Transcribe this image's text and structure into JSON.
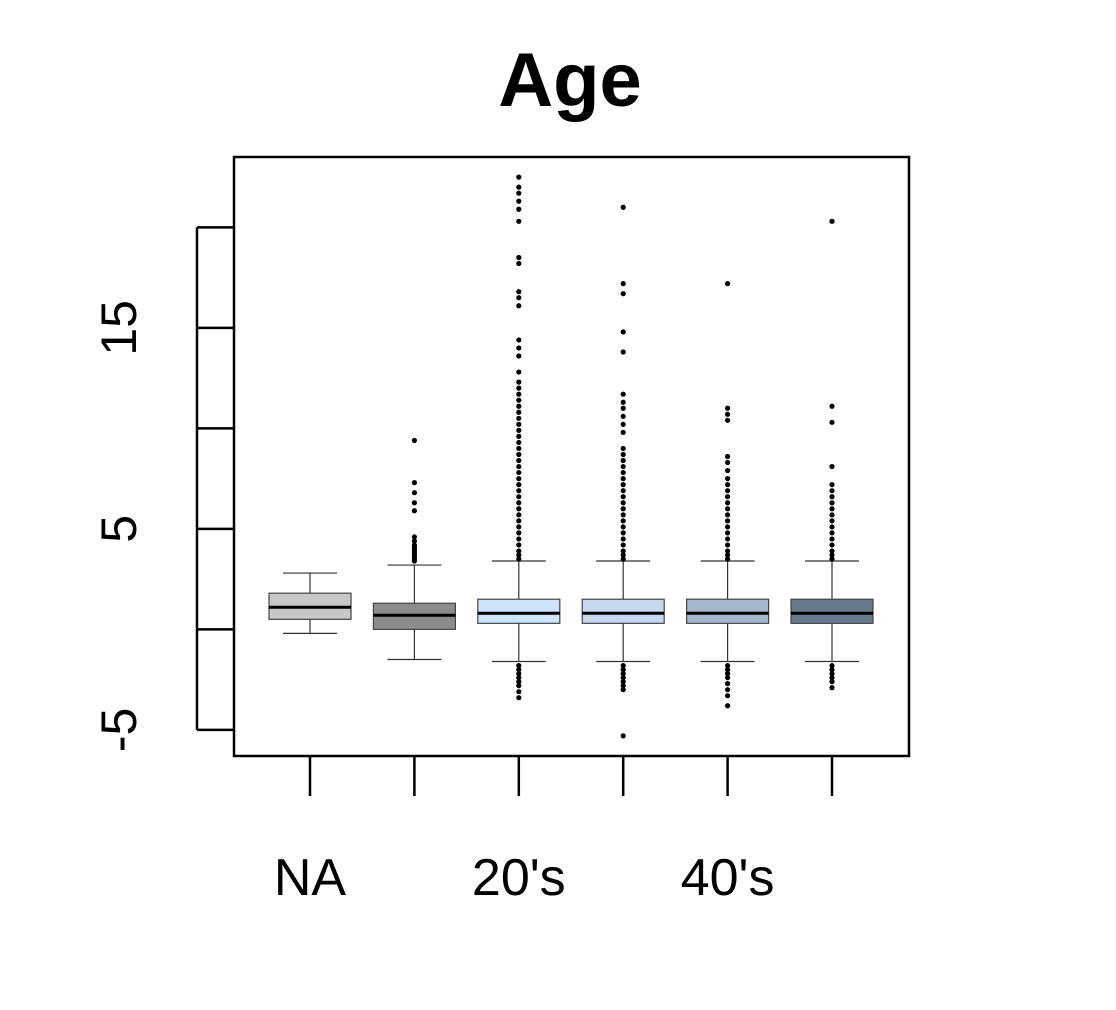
{
  "chart_data": {
    "type": "boxplot",
    "title": "Age",
    "xlabel": "",
    "ylabel": "",
    "ylim": [
      -6.3,
      23.5
    ],
    "y_ticks": [
      -5,
      0,
      5,
      10,
      15,
      20
    ],
    "y_tick_labels": [
      "-5",
      "",
      "5",
      "",
      "15",
      ""
    ],
    "x_tick_labels": [
      "NA",
      "",
      "20's",
      "",
      "40's",
      ""
    ],
    "grid": false,
    "legend": "none",
    "series": [
      {
        "color": "#c8c8c8",
        "q1": 0.5,
        "median": 1.1,
        "q3": 1.8,
        "whisker_low": -0.2,
        "whisker_high": 2.8,
        "outliers": []
      },
      {
        "color": "#8c8c8c",
        "q1": 0.0,
        "median": 0.7,
        "q3": 1.3,
        "whisker_low": -1.5,
        "whisker_high": 3.2,
        "outliers": [
          3.4,
          3.5,
          3.6,
          3.7,
          3.8,
          3.9,
          4.0,
          4.1,
          4.2,
          4.4,
          4.6,
          5.9,
          6.3,
          6.8,
          7.3,
          9.4
        ]
      },
      {
        "color": "#cfe3fb",
        "q1": 0.3,
        "median": 0.8,
        "q3": 1.5,
        "whisker_low": -1.6,
        "whisker_high": 3.4,
        "outliers": [
          3.5,
          3.7,
          3.9,
          4.2,
          4.5,
          4.8,
          5.1,
          5.4,
          5.7,
          6.0,
          6.3,
          6.6,
          6.9,
          7.2,
          7.5,
          7.8,
          8.1,
          8.4,
          8.7,
          9.0,
          9.3,
          9.6,
          9.9,
          10.2,
          10.5,
          10.8,
          11.1,
          11.4,
          11.7,
          12.0,
          12.3,
          12.8,
          13.6,
          14.0,
          14.4,
          16.1,
          16.5,
          16.8,
          18.2,
          18.5,
          20.3,
          20.9,
          21.3,
          21.7,
          22.0,
          22.5,
          -1.8,
          -2.0,
          -2.2,
          -2.4,
          -2.6,
          -2.8,
          -3.1,
          -3.4
        ]
      },
      {
        "color": "#c6d8ef",
        "q1": 0.3,
        "median": 0.8,
        "q3": 1.5,
        "whisker_low": -1.6,
        "whisker_high": 3.4,
        "outliers": [
          3.5,
          3.7,
          3.9,
          4.2,
          4.5,
          4.8,
          5.1,
          5.4,
          5.7,
          6.0,
          6.3,
          6.6,
          6.9,
          7.2,
          7.5,
          7.8,
          8.1,
          8.4,
          8.7,
          9.0,
          9.8,
          10.2,
          10.6,
          11.0,
          11.3,
          11.7,
          13.8,
          14.8,
          16.7,
          17.2,
          21.0,
          -1.8,
          -2.0,
          -2.2,
          -2.4,
          -2.6,
          -2.8,
          -3.0,
          -5.3
        ]
      },
      {
        "color": "#a6b6cb",
        "q1": 0.3,
        "median": 0.8,
        "q3": 1.5,
        "whisker_low": -1.6,
        "whisker_high": 3.4,
        "outliers": [
          3.5,
          3.7,
          3.9,
          4.2,
          4.5,
          4.8,
          5.1,
          5.4,
          5.7,
          6.0,
          6.3,
          6.6,
          6.9,
          7.2,
          7.5,
          7.9,
          8.3,
          8.6,
          10.4,
          10.7,
          11.0,
          17.2,
          -1.8,
          -2.0,
          -2.2,
          -2.4,
          -2.7,
          -3.0,
          -3.3,
          -3.8
        ]
      },
      {
        "color": "#6a7a8d",
        "q1": 0.3,
        "median": 0.8,
        "q3": 1.5,
        "whisker_low": -1.6,
        "whisker_high": 3.4,
        "outliers": [
          3.5,
          3.7,
          3.9,
          4.2,
          4.5,
          4.8,
          5.1,
          5.4,
          5.7,
          6.0,
          6.3,
          6.6,
          6.9,
          7.2,
          8.1,
          10.3,
          11.1,
          20.3,
          -1.8,
          -2.0,
          -2.2,
          -2.4,
          -2.6,
          -2.9
        ]
      }
    ]
  }
}
